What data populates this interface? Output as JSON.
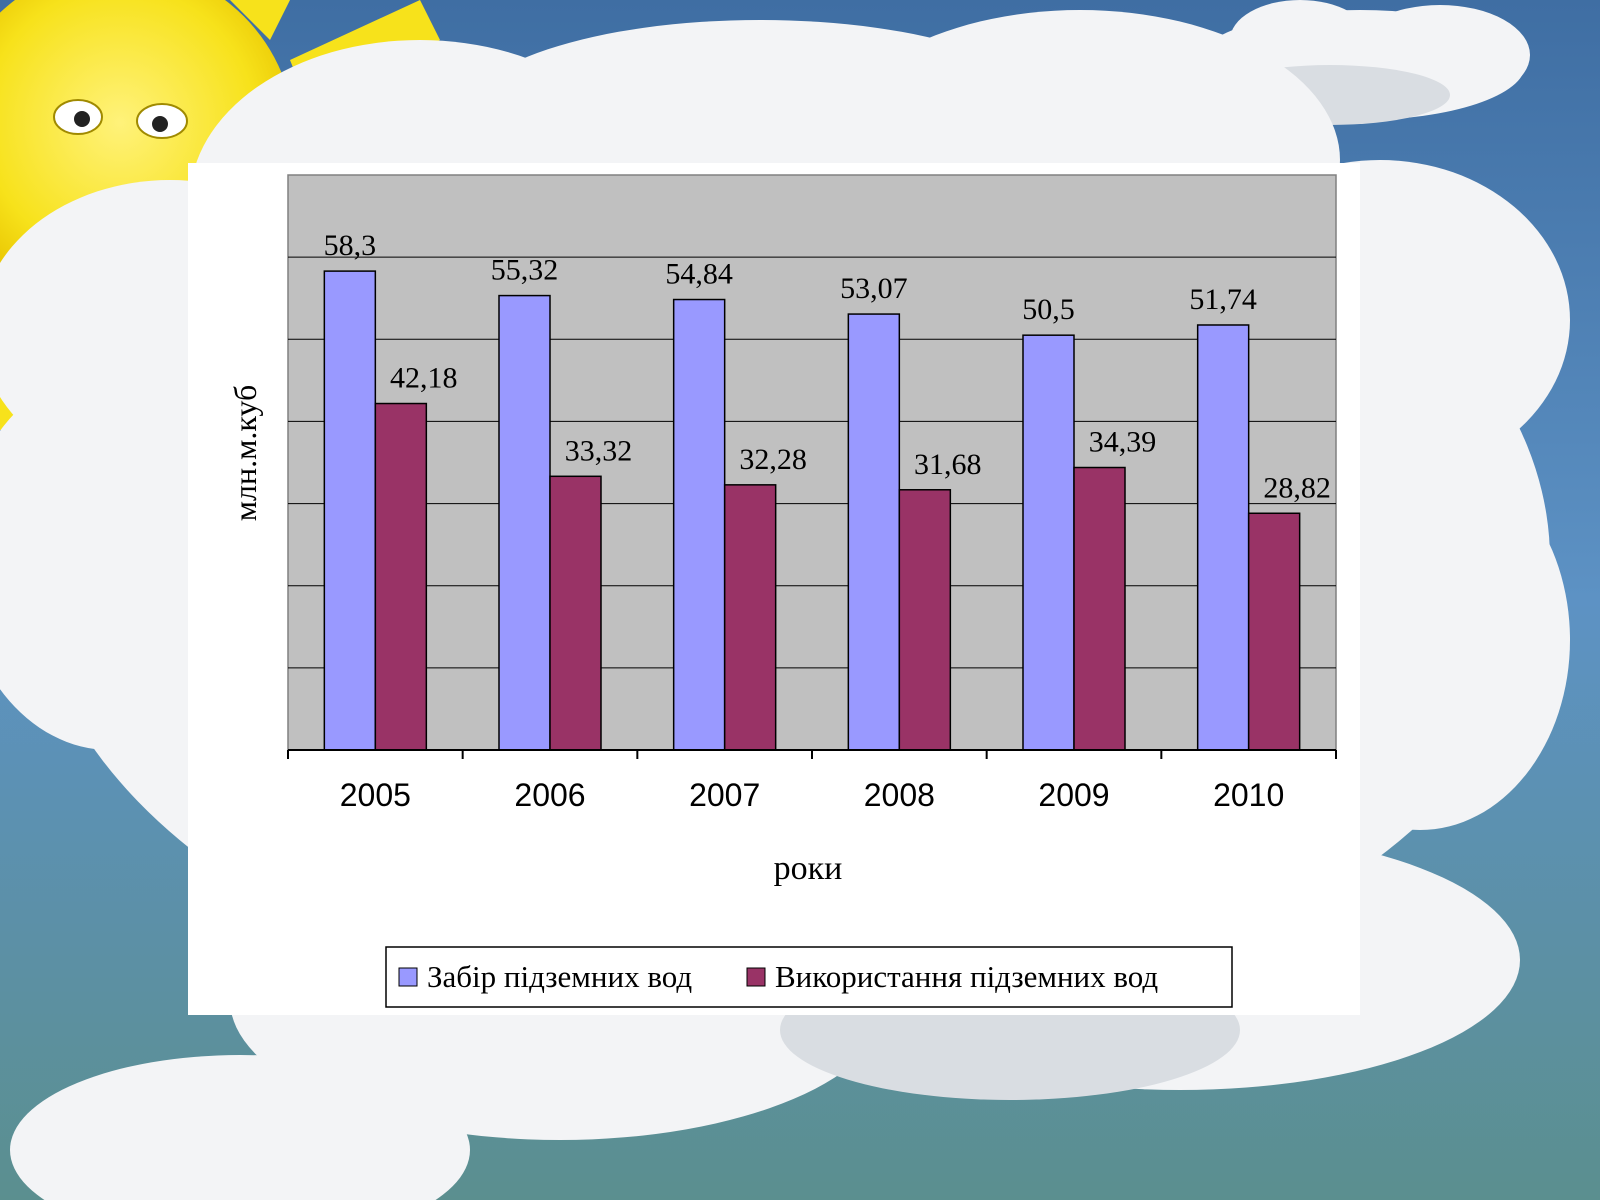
{
  "chart_data": {
    "type": "bar",
    "categories": [
      "2005",
      "2006",
      "2007",
      "2008",
      "2009",
      "2010"
    ],
    "series": [
      {
        "name": "Забір підземних вод",
        "values": [
          58.3,
          55.32,
          54.84,
          53.07,
          50.5,
          51.74
        ],
        "labels": [
          "58,3",
          "55,32",
          "54,84",
          "53,07",
          "50,5",
          "51,74"
        ],
        "color": "#9999FF"
      },
      {
        "name": "Використання підземних вод",
        "values": [
          42.18,
          33.32,
          32.28,
          31.68,
          34.39,
          28.82
        ],
        "labels": [
          "42,18",
          "33,32",
          "32,28",
          "31,68",
          "34,39",
          "28,82"
        ],
        "color": "#993366"
      }
    ],
    "xlabel": "роки",
    "ylabel": "млн.м.куб",
    "ylim": [
      0,
      70
    ],
    "grid": true,
    "legend": "bottom",
    "plot_background": "#C0C0C0"
  }
}
